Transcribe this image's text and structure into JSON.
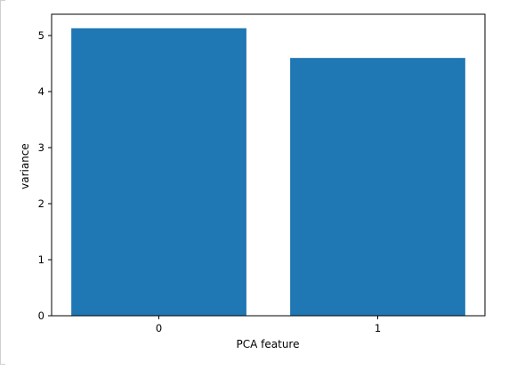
{
  "chart_data": {
    "type": "bar",
    "categories": [
      "0",
      "1"
    ],
    "values": [
      5.13,
      4.6
    ],
    "xlabel": "PCA feature",
    "ylabel": "variance",
    "ylim": [
      0,
      5.38
    ],
    "yticks": [
      "0",
      "1",
      "2",
      "3",
      "4",
      "5"
    ],
    "bar_color": "#1f77b4",
    "grid": false,
    "legend": "none"
  }
}
